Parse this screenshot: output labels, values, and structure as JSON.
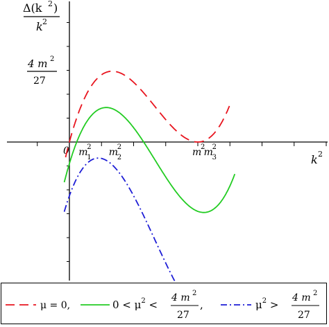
{
  "chart_data": {
    "type": "line",
    "ylabel_num": "Δ(k",
    "ylabel_num_exp": "2",
    "ylabel_num_close": ")",
    "ylabel_den": "k",
    "ylabel_den_exp": "2",
    "xlabel": "k",
    "xlabel_exp": "2",
    "ytick_num": "4 m",
    "ytick_num_exp": "2",
    "ytick_den": "27",
    "origin_label": "0",
    "m": 1,
    "xlim": [
      -0.17,
      1.32
    ],
    "ylim": [
      -0.38,
      0.34
    ],
    "x_ticks": [
      {
        "label": "m",
        "sub": "1",
        "sup": "2",
        "value": 0.115
      },
      {
        "label": "m",
        "sub": "2",
        "sup": "2",
        "value": 0.35
      },
      {
        "label": "m",
        "sub": "",
        "sup": "2",
        "value": 1.0
      },
      {
        "label": "m",
        "sub": "3",
        "sup": "2",
        "value": 1.09
      }
    ],
    "series": [
      {
        "name": "μ = 0,",
        "mu2": 0,
        "color": "#e8141e",
        "dash": "14,8",
        "x_min": -0.03,
        "x_max": 1.25
      },
      {
        "name_parts": [
          "0 < μ",
          "2",
          " < "
        ],
        "mu2": 0.1,
        "color": "#22cc22",
        "dash": "",
        "x_min": -0.04,
        "x_max": 1.29
      },
      {
        "name_parts": [
          "μ",
          "2",
          " > "
        ],
        "mu2": 0.25,
        "color": "#1d1dd6",
        "dash": "10,4,2,4",
        "x_min": -0.04,
        "x_max": 1.3
      }
    ],
    "legend": {
      "frac_num": "4 m",
      "frac_num_exp": "2",
      "frac_den": "27",
      "comma": ","
    }
  }
}
